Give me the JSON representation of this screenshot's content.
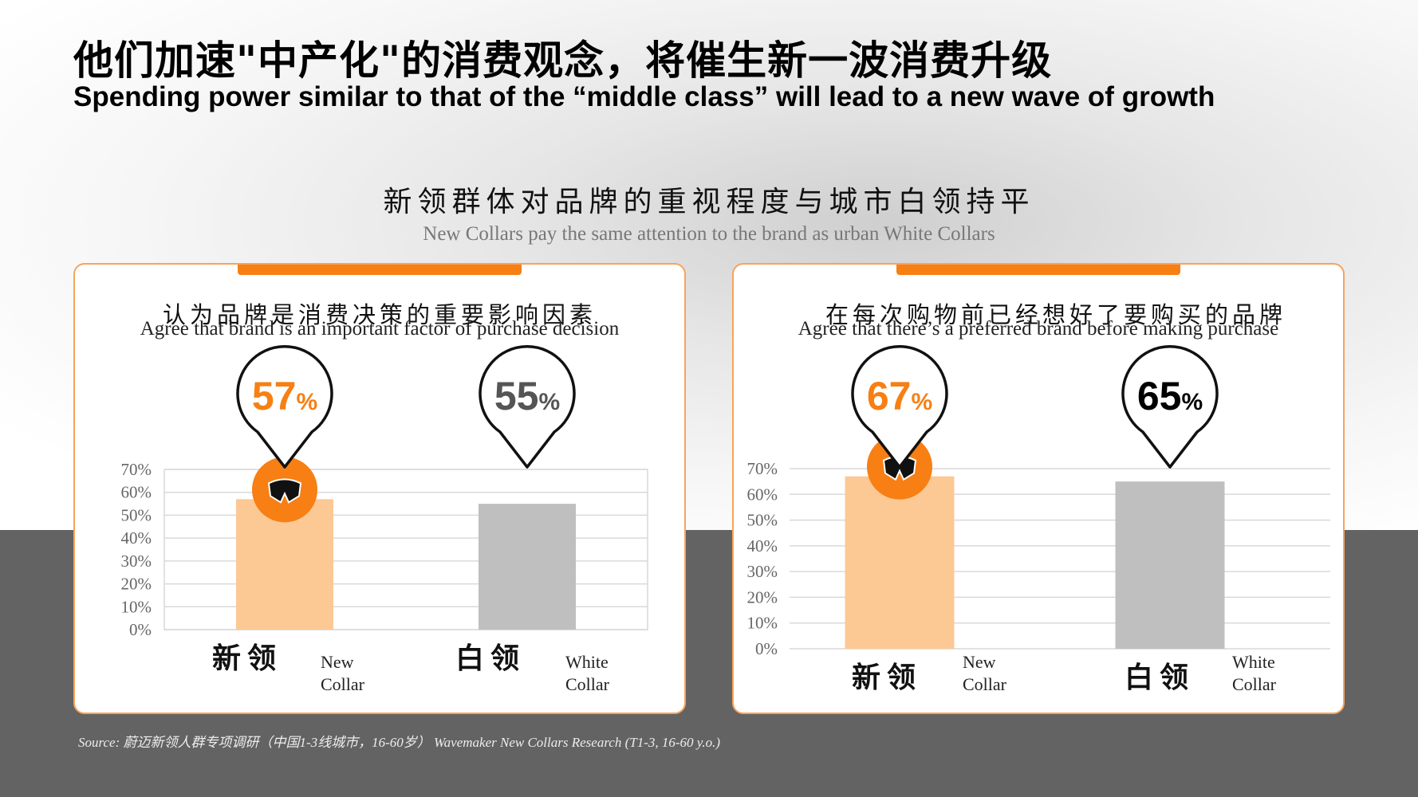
{
  "title_cn": "他们加速\"中产化\"的消费观念，将催生新一波消费升级",
  "title_en": "Spending power similar to that of the “middle class” will lead to a new wave of growth",
  "section_title_cn": "新领群体对品牌的重视程度与城市白领持平",
  "section_title_en": "New Collars pay the same attention to the brand as urban White Collars",
  "source": "Source: 蔚迈新领人群专项调研（中国1-3线城市，16-60岁） Wavemaker New Collars Research (T1-3, 16-60 y.o.)",
  "colors": {
    "accent": "#f77f14",
    "new_collar_bar": "#fcc894",
    "white_collar_bar": "#bfbfbf",
    "panel_border": "#f7a35c",
    "bottom_band": "#636363"
  },
  "icons": {
    "collar_badge": "collar-icon"
  },
  "chart_data": [
    {
      "type": "bar",
      "title": "认为品牌是消费决策的重要影响因素",
      "subtitle": "Agree that brand is an important factor of purchase decision",
      "categories": [
        "新领",
        "白领"
      ],
      "category_labels_en": [
        "New Collar",
        "White Collar"
      ],
      "values": [
        57,
        55
      ],
      "value_labels": [
        "57",
        "55"
      ],
      "value_unit": "%",
      "ylim": [
        0,
        70
      ],
      "yticks": [
        "0%",
        "10%",
        "20%",
        "30%",
        "40%",
        "50%",
        "60%",
        "70%"
      ],
      "grid": true
    },
    {
      "type": "bar",
      "title": "在每次购物前已经想好了要购买的品牌",
      "subtitle": "Agree that there’s a preferred brand before making purchase",
      "categories": [
        "新领",
        "白领"
      ],
      "category_labels_en": [
        "New Collar",
        "White Collar"
      ],
      "values": [
        67,
        65
      ],
      "value_labels": [
        "67",
        "65"
      ],
      "value_unit": "%",
      "ylim": [
        0,
        70
      ],
      "yticks": [
        "0%",
        "10%",
        "20%",
        "30%",
        "40%",
        "50%",
        "60%",
        "70%"
      ],
      "grid": true
    }
  ]
}
